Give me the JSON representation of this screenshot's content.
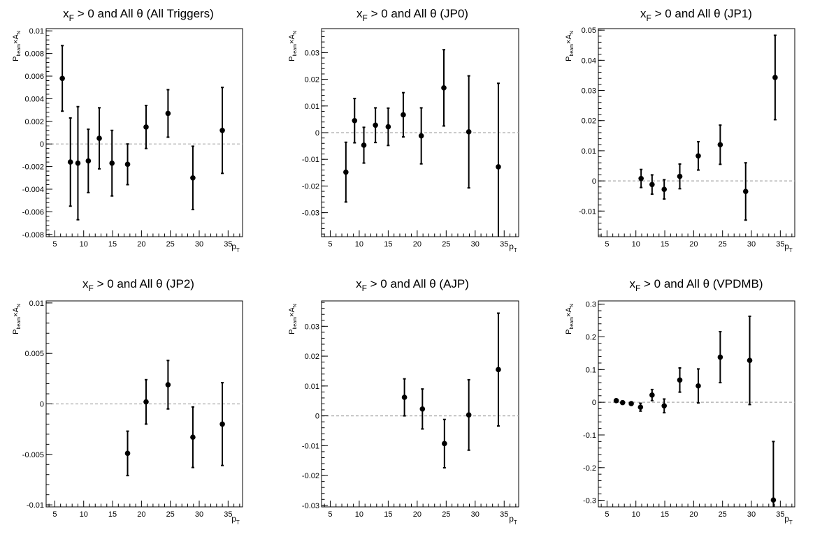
{
  "chart_data": [
    {
      "type": "scatter",
      "title": {
        "main": "x",
        "sub": "F",
        "rest": " > 0 and All θ (All Triggers)"
      },
      "ylabel": {
        "p": "P",
        "sub": "beam",
        "times": "×A",
        "sub2": "N"
      },
      "xlabel": {
        "p": "p",
        "sub": "T"
      },
      "xlim": [
        3.5,
        37.5
      ],
      "ylim": [
        -0.0082,
        0.0102
      ],
      "xticks": [
        5,
        10,
        15,
        20,
        25,
        30,
        35
      ],
      "yticks": [
        -0.008,
        -0.006,
        -0.004,
        -0.002,
        0,
        0.002,
        0.004,
        0.006,
        0.008,
        0.01
      ],
      "ytick_labels": [
        "-0.008",
        "-0.006",
        "-0.004",
        "-0.002",
        "0",
        "0.002",
        "0.004",
        "0.006",
        "0.008",
        "0.01"
      ],
      "zero_line": true,
      "points": [
        {
          "x": 6.3,
          "y": 0.0058,
          "err": 0.0029
        },
        {
          "x": 7.7,
          "y": -0.0016,
          "err": 0.0039
        },
        {
          "x": 9.0,
          "y": -0.0017,
          "err": 0.005
        },
        {
          "x": 10.8,
          "y": -0.0015,
          "err": 0.0028
        },
        {
          "x": 12.7,
          "y": 0.0005,
          "err": 0.0027
        },
        {
          "x": 14.9,
          "y": -0.0017,
          "err": 0.0029
        },
        {
          "x": 17.6,
          "y": -0.0018,
          "err": 0.0018
        },
        {
          "x": 20.8,
          "y": 0.0015,
          "err": 0.0019
        },
        {
          "x": 24.6,
          "y": 0.0027,
          "err": 0.0021
        },
        {
          "x": 28.9,
          "y": -0.003,
          "err": 0.0028
        },
        {
          "x": 34.0,
          "y": 0.0012,
          "err": 0.0038
        }
      ]
    },
    {
      "type": "scatter",
      "title": {
        "main": "x",
        "sub": "F",
        "rest": " > 0 and All θ (JP0)"
      },
      "ylabel": {
        "p": "P",
        "sub": "beam",
        "times": "×A",
        "sub2": "N"
      },
      "xlabel": {
        "p": "p",
        "sub": "T"
      },
      "xlim": [
        3.5,
        37.5
      ],
      "ylim": [
        -0.039,
        0.039
      ],
      "xticks": [
        5,
        10,
        15,
        20,
        25,
        30,
        35
      ],
      "yticks": [
        -0.03,
        -0.02,
        -0.01,
        0,
        0.01,
        0.02,
        0.03
      ],
      "ytick_labels": [
        "-0.03",
        "-0.02",
        "-0.01",
        "0",
        "0.01",
        "0.02",
        "0.03"
      ],
      "zero_line": true,
      "points": [
        {
          "x": 7.7,
          "y": -0.0148,
          "err": 0.0112
        },
        {
          "x": 9.2,
          "y": 0.0045,
          "err": 0.0083
        },
        {
          "x": 10.8,
          "y": -0.0047,
          "err": 0.0067
        },
        {
          "x": 12.8,
          "y": 0.0028,
          "err": 0.0065
        },
        {
          "x": 15.0,
          "y": 0.0022,
          "err": 0.007
        },
        {
          "x": 17.6,
          "y": 0.0067,
          "err": 0.0083
        },
        {
          "x": 20.7,
          "y": -0.0012,
          "err": 0.0105
        },
        {
          "x": 24.6,
          "y": 0.0168,
          "err": 0.0143
        },
        {
          "x": 28.9,
          "y": 0.0003,
          "err": 0.021
        },
        {
          "x": 34.0,
          "y": -0.0128,
          "err": 0.0313
        }
      ]
    },
    {
      "type": "scatter",
      "title": {
        "main": "x",
        "sub": "F",
        "rest": " > 0 and All θ (JP1)"
      },
      "ylabel": {
        "p": "P",
        "sub": "beam",
        "times": "×A",
        "sub2": "N"
      },
      "xlabel": {
        "p": "p",
        "sub": "T"
      },
      "xlim": [
        3.5,
        37.5
      ],
      "ylim": [
        -0.0185,
        0.0505
      ],
      "xticks": [
        5,
        10,
        15,
        20,
        25,
        30,
        35
      ],
      "yticks": [
        -0.01,
        0,
        0.01,
        0.02,
        0.03,
        0.04,
        0.05
      ],
      "ytick_labels": [
        "-0.01",
        "0",
        "0.01",
        "0.02",
        "0.03",
        "0.04",
        "0.05"
      ],
      "zero_line": true,
      "points": [
        {
          "x": 10.9,
          "y": 0.0008,
          "err": 0.003
        },
        {
          "x": 12.8,
          "y": -0.0012,
          "err": 0.0032
        },
        {
          "x": 14.9,
          "y": -0.0028,
          "err": 0.0032
        },
        {
          "x": 17.6,
          "y": 0.0015,
          "err": 0.0041
        },
        {
          "x": 20.8,
          "y": 0.0083,
          "err": 0.0047
        },
        {
          "x": 24.6,
          "y": 0.012,
          "err": 0.0065
        },
        {
          "x": 29.0,
          "y": -0.0035,
          "err": 0.0095
        },
        {
          "x": 34.1,
          "y": 0.0343,
          "err": 0.014
        }
      ]
    },
    {
      "type": "scatter",
      "title": {
        "main": "x",
        "sub": "F",
        "rest": " > 0 and All θ (JP2)"
      },
      "ylabel": {
        "p": "P",
        "sub": "beam",
        "times": "×A",
        "sub2": "N"
      },
      "xlabel": {
        "p": "p",
        "sub": "T"
      },
      "xlim": [
        3.5,
        37.5
      ],
      "ylim": [
        -0.0102,
        0.0102
      ],
      "xticks": [
        5,
        10,
        15,
        20,
        25,
        30,
        35
      ],
      "yticks": [
        -0.01,
        -0.005,
        0,
        0.005,
        0.01
      ],
      "ytick_labels": [
        "-0.01",
        "-0.005",
        "0",
        "0.005",
        "0.01"
      ],
      "zero_line": true,
      "points": [
        {
          "x": 17.6,
          "y": -0.0049,
          "err": 0.0022
        },
        {
          "x": 20.8,
          "y": 0.0002,
          "err": 0.0022
        },
        {
          "x": 24.6,
          "y": 0.0019,
          "err": 0.0024
        },
        {
          "x": 28.9,
          "y": -0.0033,
          "err": 0.003
        },
        {
          "x": 34.0,
          "y": -0.002,
          "err": 0.0041
        }
      ]
    },
    {
      "type": "scatter",
      "title": {
        "main": "x",
        "sub": "F",
        "rest": " > 0 and All θ (AJP)"
      },
      "ylabel": {
        "p": "P",
        "sub": "beam",
        "times": "×A",
        "sub2": "N"
      },
      "xlabel": {
        "p": "p",
        "sub": "T"
      },
      "xlim": [
        3.5,
        37.5
      ],
      "ylim": [
        -0.0305,
        0.0385
      ],
      "xticks": [
        5,
        10,
        15,
        20,
        25,
        30,
        35
      ],
      "yticks": [
        -0.03,
        -0.02,
        -0.01,
        0,
        0.01,
        0.02,
        0.03
      ],
      "ytick_labels": [
        "-0.03",
        "-0.02",
        "-0.01",
        "0",
        "0.01",
        "0.02",
        "0.03"
      ],
      "zero_line": true,
      "points": [
        {
          "x": 17.8,
          "y": 0.0062,
          "err": 0.0062
        },
        {
          "x": 20.9,
          "y": 0.0023,
          "err": 0.0067
        },
        {
          "x": 24.7,
          "y": -0.0093,
          "err": 0.0081
        },
        {
          "x": 28.9,
          "y": 0.0003,
          "err": 0.0118
        },
        {
          "x": 34.0,
          "y": 0.0155,
          "err": 0.0189
        }
      ]
    },
    {
      "type": "scatter",
      "title": {
        "main": "x",
        "sub": "F",
        "rest": " > 0 and All θ (VPDMB)"
      },
      "ylabel": {
        "p": "P",
        "sub": "beam",
        "times": "×A",
        "sub2": "N"
      },
      "xlabel": {
        "p": "p",
        "sub": "T"
      },
      "xlim": [
        3.5,
        37.5
      ],
      "ylim": [
        -0.32,
        0.31
      ],
      "xticks": [
        5,
        10,
        15,
        20,
        25,
        30,
        35
      ],
      "yticks": [
        -0.3,
        -0.2,
        -0.1,
        0,
        0.1,
        0.2,
        0.3
      ],
      "ytick_labels": [
        "-0.3",
        "-0.2",
        "-0.1",
        "0",
        "0.1",
        "0.2",
        "0.3"
      ],
      "zero_line": true,
      "points": [
        {
          "x": 6.6,
          "y": 0.005,
          "err": 0.004
        },
        {
          "x": 7.7,
          "y": -0.001,
          "err": 0.004
        },
        {
          "x": 9.2,
          "y": -0.004,
          "err": 0.004
        },
        {
          "x": 10.8,
          "y": -0.015,
          "err": 0.012
        },
        {
          "x": 12.8,
          "y": 0.022,
          "err": 0.017
        },
        {
          "x": 14.9,
          "y": -0.011,
          "err": 0.021
        },
        {
          "x": 17.6,
          "y": 0.068,
          "err": 0.037
        },
        {
          "x": 20.8,
          "y": 0.05,
          "err": 0.052
        },
        {
          "x": 24.6,
          "y": 0.138,
          "err": 0.078
        },
        {
          "x": 29.7,
          "y": 0.128,
          "err": 0.135
        },
        {
          "x": 33.8,
          "y": -0.299,
          "err": 0.179
        }
      ]
    }
  ]
}
